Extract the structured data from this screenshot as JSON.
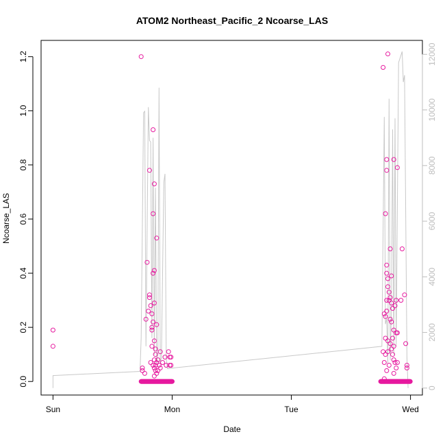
{
  "chart_data": {
    "type": "scatter",
    "title": "ATOM2 Northeast_Pacific_2 Ncoarse_LAS",
    "xlabel": "Date",
    "ylabel": "Ncoarse_LAS",
    "x_ticks": [
      {
        "label": "Sun",
        "value": 0
      },
      {
        "label": "Mon",
        "value": 1
      },
      {
        "label": "Tue",
        "value": 2
      },
      {
        "label": "Wed",
        "value": 3
      }
    ],
    "xlim": [
      -0.1,
      3.1
    ],
    "ylim": [
      -0.05,
      1.26
    ],
    "y_ticks": [
      0.0,
      0.2,
      0.4,
      0.6,
      0.8,
      1.0,
      1.2
    ],
    "y_tick_labels": [
      "0.0",
      "0.2",
      "0.4",
      "0.6",
      "0.8",
      "1.0",
      "1.2"
    ],
    "y2_lim": [
      -250,
      12500
    ],
    "y2_ticks": [
      0,
      2000,
      4000,
      6000,
      8000,
      10000,
      12000
    ],
    "y2_tick_labels": [
      "0",
      "2000",
      "4000",
      "6000",
      "8000",
      "10000",
      "12000"
    ],
    "grid": false,
    "colors": {
      "points": "#e6199e",
      "line": "#c8c8c8",
      "axis": "#000000",
      "right_axis": "#bdbdbd"
    },
    "series": [
      {
        "type": "points",
        "points": [
          [
            0.0,
            0.19
          ],
          [
            0.0,
            0.13
          ],
          [
            0.74,
            1.2
          ],
          [
            0.75,
            0.05
          ],
          [
            0.75,
            0.04
          ],
          [
            0.77,
            0.03
          ],
          [
            0.78,
            0.23
          ],
          [
            0.79,
            0.44
          ],
          [
            0.8,
            0.26
          ],
          [
            0.81,
            0.78
          ],
          [
            0.81,
            0.32
          ],
          [
            0.81,
            0.31
          ],
          [
            0.82,
            0.28
          ],
          [
            0.82,
            0.07
          ],
          [
            0.83,
            0.25
          ],
          [
            0.83,
            0.2
          ],
          [
            0.83,
            0.19
          ],
          [
            0.83,
            0.13
          ],
          [
            0.84,
            0.4
          ],
          [
            0.84,
            0.93
          ],
          [
            0.84,
            0.62
          ],
          [
            0.84,
            0.22
          ],
          [
            0.84,
            0.06
          ],
          [
            0.85,
            0.73
          ],
          [
            0.85,
            0.41
          ],
          [
            0.85,
            0.29
          ],
          [
            0.85,
            0.15
          ],
          [
            0.85,
            0.08
          ],
          [
            0.85,
            0.05
          ],
          [
            0.85,
            0.02
          ],
          [
            0.86,
            0.12
          ],
          [
            0.86,
            0.1
          ],
          [
            0.86,
            0.06
          ],
          [
            0.86,
            0.04
          ],
          [
            0.87,
            0.53
          ],
          [
            0.87,
            0.21
          ],
          [
            0.87,
            0.07
          ],
          [
            0.87,
            0.03
          ],
          [
            0.88,
            0.08
          ],
          [
            0.88,
            0.04
          ],
          [
            0.89,
            0.06
          ],
          [
            0.9,
            0.11
          ],
          [
            0.9,
            0.05
          ],
          [
            0.92,
            0.07
          ],
          [
            0.94,
            0.09
          ],
          [
            0.95,
            0.06
          ],
          [
            0.97,
            0.11
          ],
          [
            0.98,
            0.09
          ],
          [
            0.98,
            0.06
          ],
          [
            0.99,
            0.09
          ],
          [
            0.99,
            0.06
          ],
          [
            2.77,
            1.16
          ],
          [
            2.77,
            0.11
          ],
          [
            2.78,
            0.25
          ],
          [
            2.78,
            0.07
          ],
          [
            2.78,
            0.01
          ],
          [
            2.79,
            0.62
          ],
          [
            2.79,
            0.24
          ],
          [
            2.79,
            0.16
          ],
          [
            2.79,
            0.1
          ],
          [
            2.8,
            0.82
          ],
          [
            2.8,
            0.78
          ],
          [
            2.8,
            0.43
          ],
          [
            2.8,
            0.4
          ],
          [
            2.8,
            0.3
          ],
          [
            2.8,
            0.26
          ],
          [
            2.8,
            0.04
          ],
          [
            2.81,
            1.21
          ],
          [
            2.81,
            0.38
          ],
          [
            2.81,
            0.35
          ],
          [
            2.81,
            0.15
          ],
          [
            2.81,
            0.11
          ],
          [
            2.82,
            0.33
          ],
          [
            2.82,
            0.3
          ],
          [
            2.82,
            0.06
          ],
          [
            2.83,
            0.49
          ],
          [
            2.83,
            0.31
          ],
          [
            2.83,
            0.23
          ],
          [
            2.83,
            0.14
          ],
          [
            2.84,
            0.39
          ],
          [
            2.84,
            0.29
          ],
          [
            2.84,
            0.22
          ],
          [
            2.84,
            0.12
          ],
          [
            2.85,
            0.27
          ],
          [
            2.85,
            0.16
          ],
          [
            2.85,
            0.1
          ],
          [
            2.86,
            0.82
          ],
          [
            2.86,
            0.19
          ],
          [
            2.86,
            0.13
          ],
          [
            2.86,
            0.08
          ],
          [
            2.86,
            0.03
          ],
          [
            2.87,
            0.28
          ],
          [
            2.87,
            0.07
          ],
          [
            2.88,
            0.3
          ],
          [
            2.88,
            0.18
          ],
          [
            2.88,
            0.05
          ],
          [
            2.89,
            0.79
          ],
          [
            2.89,
            0.18
          ],
          [
            2.89,
            0.07
          ],
          [
            2.92,
            0.3
          ],
          [
            2.93,
            0.49
          ],
          [
            2.95,
            0.32
          ],
          [
            2.96,
            0.14
          ],
          [
            2.97,
            0.06
          ],
          [
            2.97,
            0.05
          ]
        ],
        "baseline_points": {
          "y": 0.0,
          "x_ranges": [
            [
              0.74,
              1.0
            ],
            [
              2.75,
              3.0
            ]
          ]
        }
      },
      {
        "type": "line",
        "axis": "right",
        "points": [
          [
            0.0,
            0
          ],
          [
            0.0,
            450
          ],
          [
            0.73,
            600
          ],
          [
            0.74,
            1800
          ],
          [
            0.76,
            9900
          ],
          [
            0.77,
            9950
          ],
          [
            0.78,
            1500
          ],
          [
            0.8,
            10100
          ],
          [
            0.81,
            8900
          ],
          [
            0.82,
            8850
          ],
          [
            0.83,
            1800
          ],
          [
            0.84,
            9000
          ],
          [
            0.85,
            1200
          ],
          [
            0.86,
            7200
          ],
          [
            0.87,
            900
          ],
          [
            0.88,
            1200
          ],
          [
            0.89,
            10800
          ],
          [
            0.9,
            900
          ],
          [
            0.91,
            1100
          ],
          [
            0.93,
            7400
          ],
          [
            0.94,
            7700
          ],
          [
            0.95,
            1100
          ],
          [
            0.96,
            700
          ],
          [
            2.76,
            1500
          ],
          [
            2.78,
            9750
          ],
          [
            2.79,
            2300
          ],
          [
            2.8,
            2500
          ],
          [
            2.81,
            900
          ],
          [
            2.82,
            10400
          ],
          [
            2.83,
            1000
          ],
          [
            2.84,
            2700
          ],
          [
            2.85,
            9300
          ],
          [
            2.86,
            1200
          ],
          [
            2.87,
            9700
          ],
          [
            2.88,
            1500
          ],
          [
            2.9,
            11700
          ],
          [
            2.93,
            12100
          ],
          [
            2.94,
            11000
          ],
          [
            2.95,
            11250
          ],
          [
            2.97,
            1100
          ],
          [
            2.98,
            0
          ]
        ]
      }
    ]
  }
}
